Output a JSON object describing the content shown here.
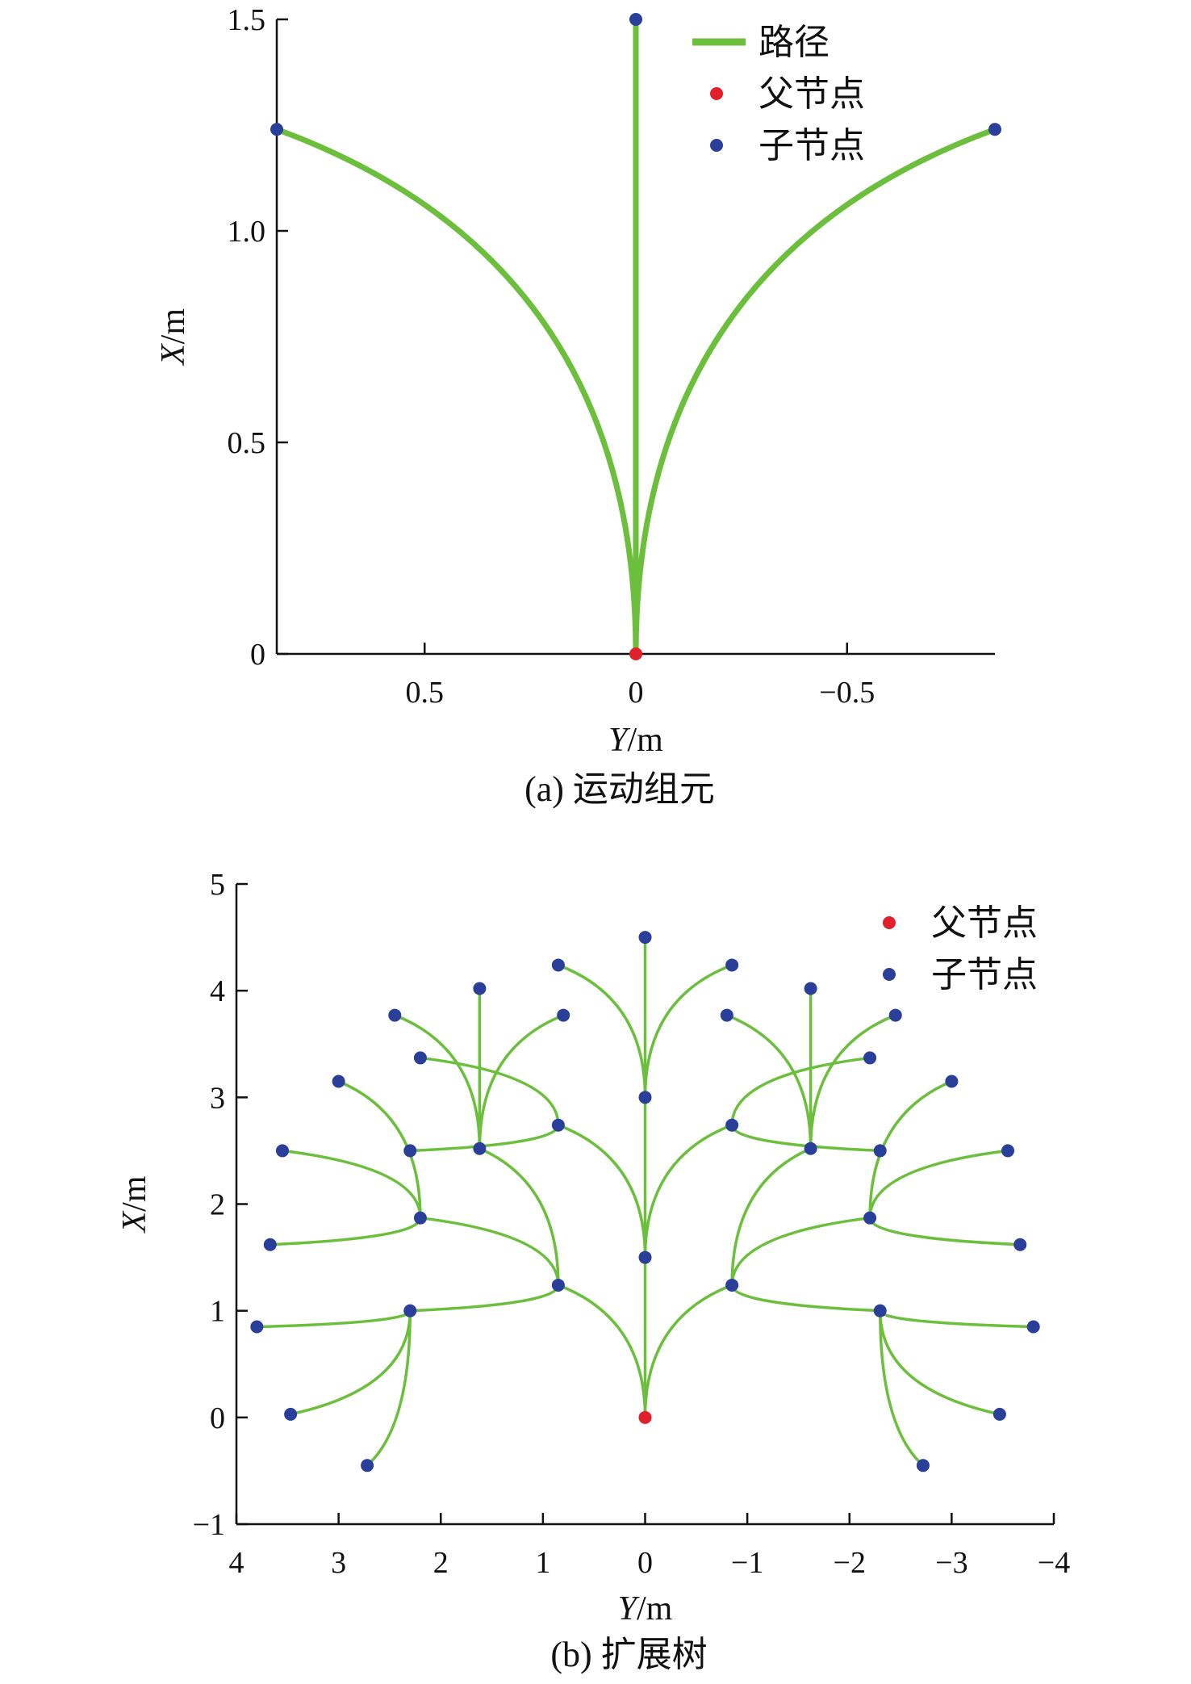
{
  "chart_data": [
    {
      "type": "line",
      "caption": "(a) 运动组元",
      "xlabel": "Y/m",
      "ylabel": "X/m",
      "x_reversed": true,
      "xlim": [
        0.85,
        -0.85
      ],
      "ylim": [
        0,
        1.5
      ],
      "x_ticks": [
        0.5,
        0,
        -0.5
      ],
      "x_tick_labels": [
        "0.5",
        "0",
        "−0.5"
      ],
      "y_ticks": [
        0,
        0.5,
        1.0,
        1.5
      ],
      "y_tick_labels": [
        "0",
        "0.5",
        "1.0",
        "1.5"
      ],
      "legend": {
        "position": "top-right",
        "items": [
          {
            "label": "路径",
            "kind": "line",
            "color": "#6cbf3c"
          },
          {
            "label": "父节点",
            "kind": "dot",
            "color": "#e0202a"
          },
          {
            "label": "子节点",
            "kind": "dot",
            "color": "#2a3f9a"
          }
        ]
      },
      "parent_node": [
        0,
        0
      ],
      "child_nodes": [
        [
          0,
          1.5
        ],
        [
          0.85,
          1.24
        ],
        [
          -0.85,
          1.24
        ]
      ],
      "paths": [
        {
          "from": [
            0,
            0
          ],
          "to": [
            0,
            1.5
          ]
        },
        {
          "from": [
            0,
            0
          ],
          "to": [
            0.85,
            1.24
          ]
        },
        {
          "from": [
            0,
            0
          ],
          "to": [
            -0.85,
            1.24
          ]
        }
      ]
    },
    {
      "type": "scatter",
      "caption": "(b) 扩展树",
      "xlabel": "Y/m",
      "ylabel": "X/m",
      "x_reversed": true,
      "xlim": [
        4,
        -4
      ],
      "ylim": [
        -1,
        5
      ],
      "x_ticks": [
        4,
        3,
        2,
        1,
        0,
        -1,
        -2,
        -3,
        -4
      ],
      "x_tick_labels": [
        "4",
        "3",
        "2",
        "1",
        "0",
        "−1",
        "−2",
        "−3",
        "−4"
      ],
      "y_ticks": [
        -1,
        0,
        1,
        2,
        3,
        4,
        5
      ],
      "y_tick_labels": [
        "−1",
        "0",
        "1",
        "2",
        "3",
        "4",
        "5"
      ],
      "legend": {
        "position": "top-right",
        "items": [
          {
            "label": "父节点",
            "kind": "dot",
            "color": "#e0202a"
          },
          {
            "label": "子节点",
            "kind": "dot",
            "color": "#2a3f9a"
          }
        ]
      },
      "parent_node": [
        0,
        0
      ],
      "edges": [
        [
          [
            0,
            0
          ],
          [
            0,
            1.5
          ]
        ],
        [
          [
            0,
            0
          ],
          [
            0.85,
            1.24
          ]
        ],
        [
          [
            0,
            0
          ],
          [
            -0.85,
            1.24
          ]
        ],
        [
          [
            0,
            1.5
          ],
          [
            0,
            3.0
          ]
        ],
        [
          [
            0,
            1.5
          ],
          [
            0.85,
            2.74
          ]
        ],
        [
          [
            0,
            1.5
          ],
          [
            -0.85,
            2.74
          ]
        ],
        [
          [
            0,
            3.0
          ],
          [
            0,
            4.5
          ]
        ],
        [
          [
            0,
            3.0
          ],
          [
            0.85,
            4.24
          ]
        ],
        [
          [
            0,
            3.0
          ],
          [
            -0.85,
            4.24
          ]
        ],
        [
          [
            0.85,
            1.24
          ],
          [
            2.2,
            1.87
          ]
        ],
        [
          [
            0.85,
            1.24
          ],
          [
            1.62,
            2.52
          ]
        ],
        [
          [
            0.85,
            1.24
          ],
          [
            2.3,
            1.0
          ]
        ],
        [
          [
            1.62,
            2.52
          ],
          [
            1.62,
            4.02
          ]
        ],
        [
          [
            1.62,
            2.52
          ],
          [
            2.45,
            3.77
          ]
        ],
        [
          [
            1.62,
            2.52
          ],
          [
            0.8,
            3.77
          ]
        ],
        [
          [
            0.85,
            2.74
          ],
          [
            2.2,
            3.37
          ]
        ],
        [
          [
            0.85,
            2.74
          ],
          [
            2.3,
            2.5
          ]
        ],
        [
          [
            2.2,
            1.87
          ],
          [
            3.55,
            2.5
          ]
        ],
        [
          [
            2.2,
            1.87
          ],
          [
            3.0,
            3.15
          ]
        ],
        [
          [
            2.2,
            1.87
          ],
          [
            3.67,
            1.62
          ]
        ],
        [
          [
            2.3,
            1.0
          ],
          [
            3.8,
            0.85
          ]
        ],
        [
          [
            2.3,
            1.0
          ],
          [
            3.47,
            0.03
          ]
        ],
        [
          [
            2.3,
            1.0
          ],
          [
            2.72,
            -0.45
          ]
        ],
        [
          [
            -0.85,
            1.24
          ],
          [
            -2.2,
            1.87
          ]
        ],
        [
          [
            -0.85,
            1.24
          ],
          [
            -1.62,
            2.52
          ]
        ],
        [
          [
            -0.85,
            1.24
          ],
          [
            -2.3,
            1.0
          ]
        ],
        [
          [
            -1.62,
            2.52
          ],
          [
            -1.62,
            4.02
          ]
        ],
        [
          [
            -1.62,
            2.52
          ],
          [
            -2.45,
            3.77
          ]
        ],
        [
          [
            -1.62,
            2.52
          ],
          [
            -0.8,
            3.77
          ]
        ],
        [
          [
            -0.85,
            2.74
          ],
          [
            -2.2,
            3.37
          ]
        ],
        [
          [
            -0.85,
            2.74
          ],
          [
            -2.3,
            2.5
          ]
        ],
        [
          [
            -2.2,
            1.87
          ],
          [
            -3.55,
            2.5
          ]
        ],
        [
          [
            -2.2,
            1.87
          ],
          [
            -3.0,
            3.15
          ]
        ],
        [
          [
            -2.2,
            1.87
          ],
          [
            -3.67,
            1.62
          ]
        ],
        [
          [
            -2.3,
            1.0
          ],
          [
            -3.8,
            0.85
          ]
        ],
        [
          [
            -2.3,
            1.0
          ],
          [
            -3.47,
            0.03
          ]
        ],
        [
          [
            -2.3,
            1.0
          ],
          [
            -2.72,
            -0.45
          ]
        ]
      ],
      "child_nodes": [
        [
          0,
          1.5
        ],
        [
          0.85,
          1.24
        ],
        [
          -0.85,
          1.24
        ],
        [
          0,
          3.0
        ],
        [
          0.85,
          2.74
        ],
        [
          -0.85,
          2.74
        ],
        [
          0,
          4.5
        ],
        [
          0.85,
          4.24
        ],
        [
          -0.85,
          4.24
        ],
        [
          2.2,
          1.87
        ],
        [
          1.62,
          2.52
        ],
        [
          2.3,
          1.0
        ],
        [
          1.62,
          4.02
        ],
        [
          2.45,
          3.77
        ],
        [
          0.8,
          3.77
        ],
        [
          2.2,
          3.37
        ],
        [
          2.3,
          2.5
        ],
        [
          3.55,
          2.5
        ],
        [
          3.0,
          3.15
        ],
        [
          3.67,
          1.62
        ],
        [
          3.8,
          0.85
        ],
        [
          3.47,
          0.03
        ],
        [
          2.72,
          -0.45
        ],
        [
          -2.2,
          1.87
        ],
        [
          -1.62,
          2.52
        ],
        [
          -2.3,
          1.0
        ],
        [
          -1.62,
          4.02
        ],
        [
          -2.45,
          3.77
        ],
        [
          -0.8,
          3.77
        ],
        [
          -2.2,
          3.37
        ],
        [
          -2.3,
          2.5
        ],
        [
          -3.55,
          2.5
        ],
        [
          -3.0,
          3.15
        ],
        [
          -3.67,
          1.62
        ],
        [
          -3.8,
          0.85
        ],
        [
          -3.47,
          0.03
        ],
        [
          -2.72,
          -0.45
        ]
      ]
    }
  ]
}
